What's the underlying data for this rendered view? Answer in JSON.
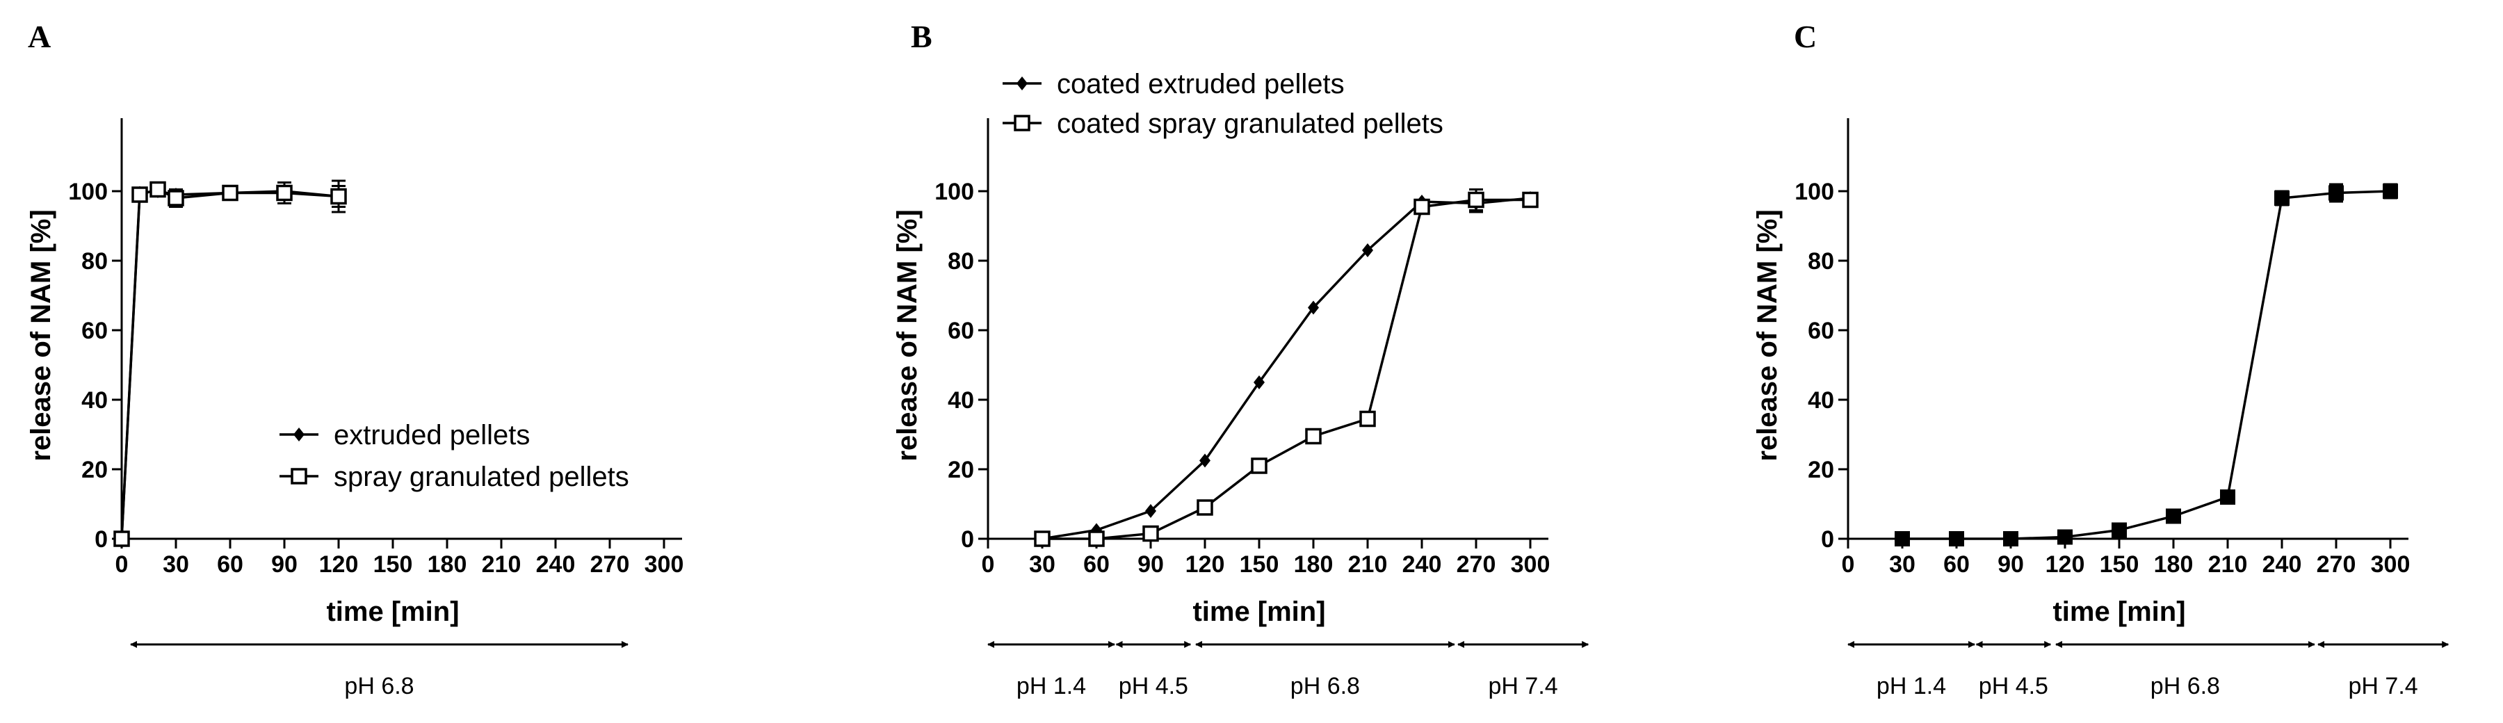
{
  "chart_data": [
    {
      "panel": "A",
      "type": "line",
      "xlabel": "time [min]",
      "ylabel": "release of NAM [%]",
      "xlim": [
        0,
        300
      ],
      "ylim": [
        0,
        100
      ],
      "xticks": [
        "0",
        "30",
        "60",
        "90",
        "120",
        "150",
        "180",
        "210",
        "240",
        "270",
        "300"
      ],
      "yticks": [
        "0",
        "20",
        "40",
        "60",
        "80",
        "100"
      ],
      "legend_position": "lower-right",
      "series": [
        {
          "name": "extruded pellets",
          "marker": "diamond",
          "x": [
            0,
            10,
            20,
            30,
            60,
            90,
            120
          ],
          "y": [
            0,
            99.5,
            100,
            99,
            99.5,
            100,
            98.5
          ],
          "err": [
            0,
            1,
            1,
            1.5,
            1,
            1.5,
            3
          ]
        },
        {
          "name": "spray granulated pellets",
          "marker": "open-square",
          "x": [
            0,
            10,
            20,
            30,
            60,
            90,
            120
          ],
          "y": [
            0,
            99,
            100.5,
            98,
            99.5,
            99.5,
            98.5
          ],
          "err": [
            0,
            1.5,
            1,
            2.5,
            1,
            3,
            4.5
          ]
        }
      ],
      "ph_ranges": [
        {
          "label": "pH 6.8",
          "from": 5,
          "to": 280
        }
      ]
    },
    {
      "panel": "B",
      "type": "line",
      "xlabel": "time [min]",
      "ylabel": "release of NAM [%]",
      "xlim": [
        0,
        300
      ],
      "ylim": [
        0,
        100
      ],
      "xticks": [
        "0",
        "30",
        "60",
        "90",
        "120",
        "150",
        "180",
        "210",
        "240",
        "270",
        "300"
      ],
      "yticks": [
        "0",
        "20",
        "40",
        "60",
        "80",
        "100"
      ],
      "legend_position": "top-left",
      "series": [
        {
          "name": "coated extruded pellets",
          "marker": "diamond",
          "x": [
            30,
            60,
            90,
            120,
            150,
            180,
            210,
            240,
            270,
            300
          ],
          "y": [
            0,
            2.5,
            8,
            22.5,
            45,
            66.5,
            83,
            97,
            96.5,
            98
          ],
          "err": [
            0,
            0,
            0,
            0,
            0,
            0,
            0,
            0.5,
            2.5,
            1.5
          ]
        },
        {
          "name": "coated spray granulated pellets",
          "marker": "open-square",
          "x": [
            30,
            60,
            90,
            120,
            150,
            180,
            210,
            240,
            270,
            300
          ],
          "y": [
            0,
            0,
            1.5,
            9,
            21,
            29.5,
            34.5,
            95.5,
            97.5,
            97.5
          ],
          "err": [
            0,
            0,
            0,
            0,
            0,
            0,
            0,
            1.5,
            3,
            2
          ]
        }
      ],
      "ph_ranges": [
        {
          "label": "pH 1.4",
          "from": 0,
          "to": 70
        },
        {
          "label": "pH 4.5",
          "from": 71,
          "to": 112
        },
        {
          "label": "pH 6.8",
          "from": 115,
          "to": 258
        },
        {
          "label": "pH 7.4",
          "from": 260,
          "to": 332
        }
      ]
    },
    {
      "panel": "C",
      "type": "line",
      "xlabel": "time [min]",
      "ylabel": "release of NAM [%]",
      "xlim": [
        0,
        300
      ],
      "ylim": [
        0,
        100
      ],
      "xticks": [
        "0",
        "30",
        "60",
        "90",
        "120",
        "150",
        "180",
        "210",
        "240",
        "270",
        "300"
      ],
      "yticks": [
        "0",
        "20",
        "40",
        "60",
        "80",
        "100"
      ],
      "series": [
        {
          "marker": "filled-square",
          "x": [
            30,
            60,
            90,
            120,
            150,
            180,
            210,
            240,
            270,
            300
          ],
          "y": [
            0,
            0,
            0,
            0.5,
            2.5,
            6.5,
            12,
            98,
            99.5,
            100
          ],
          "err": [
            0,
            0,
            0,
            0,
            0,
            0,
            0,
            2,
            2.5,
            2
          ]
        }
      ],
      "ph_ranges": [
        {
          "label": "pH 1.4",
          "from": 0,
          "to": 70
        },
        {
          "label": "pH 4.5",
          "from": 71,
          "to": 112
        },
        {
          "label": "pH 6.8",
          "from": 115,
          "to": 258
        },
        {
          "label": "pH 7.4",
          "from": 260,
          "to": 332
        }
      ]
    }
  ]
}
